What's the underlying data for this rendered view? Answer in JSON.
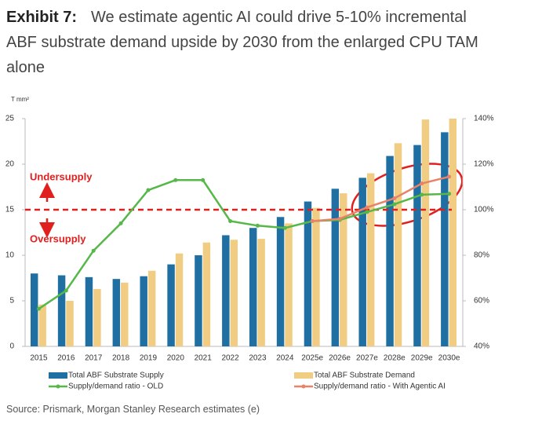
{
  "chart_data": {
    "type": "bar",
    "title_label": "Exhibit 7:",
    "title": "We estimate agentic AI could drive 5-10% incremental ABF substrate demand upside by 2030 from the enlarged CPU TAM alone",
    "y_label": "T mm²",
    "categories": [
      "2015",
      "2016",
      "2017",
      "2018",
      "2019",
      "2020",
      "2021",
      "2022",
      "2023",
      "2024",
      "2025e",
      "2026e",
      "2027e",
      "2028e",
      "2029e",
      "2030e"
    ],
    "series": [
      {
        "name": "Total ABF Substrate Supply",
        "color": "#1f6fa3",
        "values": [
          8.0,
          7.8,
          7.6,
          7.4,
          7.7,
          9.0,
          10.0,
          12.2,
          13.0,
          14.2,
          15.9,
          17.3,
          18.5,
          20.9,
          22.1,
          23.5
        ]
      },
      {
        "name": "Total ABF Substrate Demand",
        "color": "#f0cd82",
        "values": [
          4.6,
          5.0,
          6.3,
          7.0,
          8.3,
          10.2,
          11.4,
          11.7,
          11.8,
          13.5,
          15.2,
          16.8,
          19.0,
          22.3,
          24.9,
          25.0
        ]
      },
      {
        "name": "Supply/demand ratio - OLD",
        "color": "#55b848",
        "axis": "y2",
        "values": [
          56.5,
          64.5,
          82,
          94,
          108.6,
          113,
          113,
          95,
          93,
          92,
          95,
          95.5,
          99,
          102.4,
          106.6,
          107
        ]
      },
      {
        "name": "Supply/demand ratio - With Agentic AI",
        "color": "#e8836a",
        "axis": "y2",
        "values": [
          null,
          null,
          null,
          null,
          null,
          null,
          null,
          null,
          null,
          null,
          95,
          96,
          101,
          105,
          111.5,
          114.5
        ]
      }
    ],
    "ylim": [
      0,
      25
    ],
    "yticks": [
      0,
      5,
      10,
      15,
      20,
      25
    ],
    "y2lim": [
      40,
      140
    ],
    "y2ticks": [
      {
        "value": 40,
        "label": "40%"
      },
      {
        "value": 60,
        "label": "60%"
      },
      {
        "value": 80,
        "label": "80%"
      },
      {
        "value": 100,
        "label": "100%"
      },
      {
        "value": 120,
        "label": "120%"
      },
      {
        "value": 140,
        "label": "140%"
      }
    ],
    "grid": false,
    "reference_value": 15,
    "annotations": [
      "Undersupply",
      "Oversupply"
    ],
    "source": "Source: Prismark, Morgan Stanley Research estimates (e)"
  }
}
